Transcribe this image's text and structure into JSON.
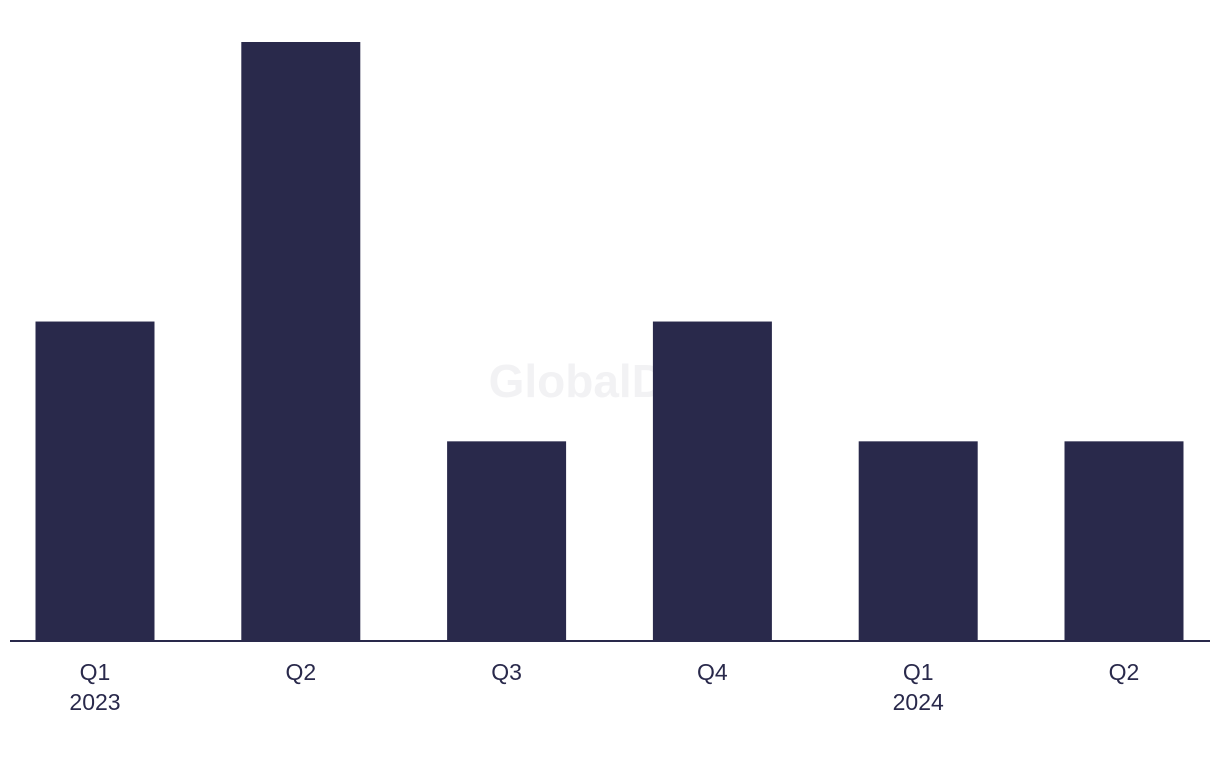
{
  "chart_data": {
    "type": "bar",
    "watermark": "GlobalData",
    "categories": [
      "Q1",
      "Q2",
      "Q3",
      "Q4",
      "Q1",
      "Q2"
    ],
    "year_labels": [
      "2023",
      null,
      null,
      null,
      "2024",
      null
    ],
    "values": [
      8,
      15,
      5,
      8,
      5,
      5
    ],
    "color": "#29294b"
  }
}
